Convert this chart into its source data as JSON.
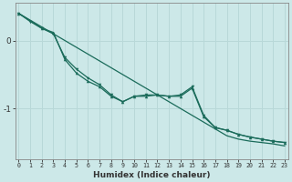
{
  "xlabel": "Humidex (Indice chaleur)",
  "background_color": "#cce8e8",
  "grid_color": "#b8d8d8",
  "line_color": "#1a6b5a",
  "xlim": [
    -0.3,
    23.3
  ],
  "ylim": [
    -1.75,
    0.55
  ],
  "yticks": [
    0,
    -1
  ],
  "xticks": [
    0,
    1,
    2,
    3,
    4,
    5,
    6,
    7,
    8,
    9,
    10,
    11,
    12,
    13,
    14,
    15,
    16,
    17,
    18,
    19,
    20,
    21,
    22,
    23
  ],
  "line1_x": [
    0,
    1,
    2,
    3,
    4,
    5,
    6,
    7,
    8,
    9,
    10,
    11,
    12,
    13,
    14,
    15,
    16,
    17,
    18,
    19,
    20,
    21,
    22,
    23
  ],
  "line1_y": [
    0.4,
    0.3,
    0.2,
    0.1,
    0.0,
    -0.1,
    -0.2,
    -0.3,
    -0.4,
    -0.5,
    -0.6,
    -0.7,
    -0.8,
    -0.9,
    -1.0,
    -1.1,
    -1.2,
    -1.3,
    -1.4,
    -1.45,
    -1.48,
    -1.5,
    -1.52,
    -1.55
  ],
  "line2_x": [
    0,
    1,
    2,
    3,
    4,
    5,
    6,
    7,
    8,
    9,
    10,
    11,
    12,
    13,
    14,
    15,
    16,
    17,
    18,
    19,
    20,
    21,
    22,
    23
  ],
  "line2_y": [
    0.4,
    0.28,
    0.18,
    0.1,
    -0.25,
    -0.42,
    -0.55,
    -0.65,
    -0.8,
    -0.9,
    -0.82,
    -0.8,
    -0.8,
    -0.82,
    -0.8,
    -0.68,
    -1.1,
    -1.28,
    -1.32,
    -1.38,
    -1.42,
    -1.45,
    -1.48,
    -1.5
  ],
  "line3_x": [
    0,
    2,
    3,
    4,
    5,
    6,
    7,
    8,
    9,
    10,
    11,
    12,
    13,
    14,
    15,
    16,
    17,
    18,
    19,
    20,
    21,
    22,
    23
  ],
  "line3_y": [
    0.4,
    0.18,
    0.12,
    -0.28,
    -0.48,
    -0.6,
    -0.68,
    -0.82,
    -0.9,
    -0.82,
    -0.82,
    -0.8,
    -0.82,
    -0.82,
    -0.7,
    -1.12,
    -1.28,
    -1.32,
    -1.38,
    -1.42,
    -1.45,
    -1.48,
    -1.5
  ]
}
